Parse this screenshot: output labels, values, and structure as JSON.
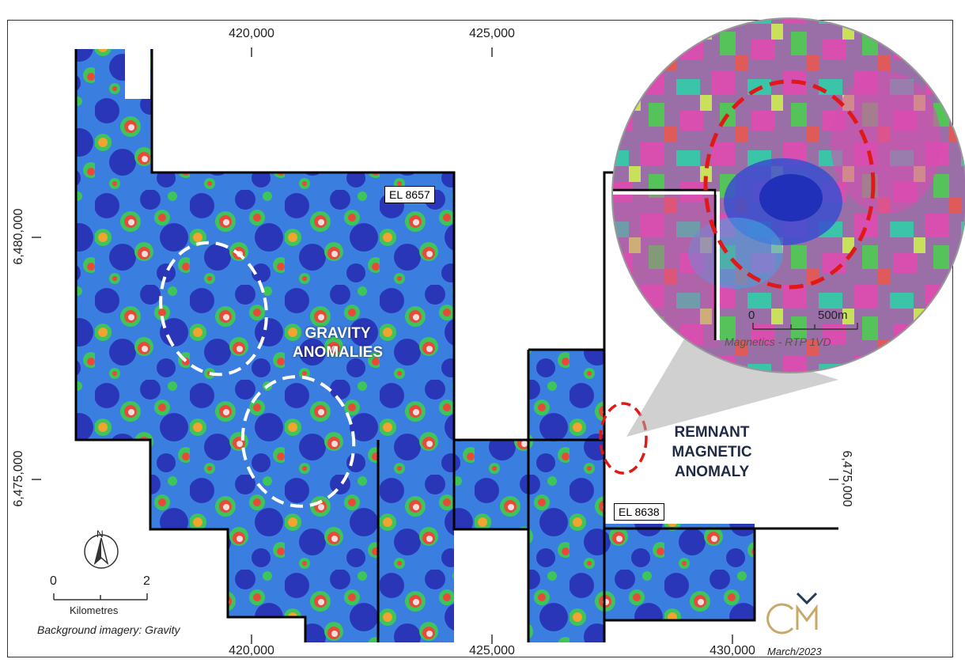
{
  "axis": {
    "top_ticks": [
      "420,000",
      "425,000"
    ],
    "bottom_ticks": [
      "420,000",
      "425,000",
      "430,000"
    ],
    "left_ticks": [
      "6,480,000",
      "6,475,000"
    ],
    "right_ticks": [
      "6,475,000"
    ]
  },
  "tenements": {
    "el_8657": "EL 8657",
    "el_8638": "EL 8638"
  },
  "annotations": {
    "gravity_line1": "GRAVITY",
    "gravity_line2": "ANOMALIES",
    "remnant_line1": "REMNANT",
    "remnant_line2": "MAGNETIC",
    "remnant_line3": "ANOMALY"
  },
  "inset": {
    "scale_zero": "0",
    "scale_end": "500m",
    "caption": "Magnetics - RTP 1VD"
  },
  "scalebar": {
    "zero": "0",
    "end": "2",
    "units": "Kilometres"
  },
  "north_arrow": {
    "label": "N"
  },
  "credits": {
    "background": "Background imagery: Gravity",
    "date": "March/2023"
  },
  "colors": {
    "gravity_blue": "#2f3fc4",
    "gravity_green": "#3bc85a",
    "gravity_red": "#e84a3a",
    "gravity_white": "#f4dede",
    "magnetic_pink": "#d84fb0",
    "anomaly_white_dash": "#ffffff",
    "anomaly_red_dash": "#e01818",
    "logo_gold": "#c9a86a",
    "logo_navy": "#1f3a5f"
  }
}
